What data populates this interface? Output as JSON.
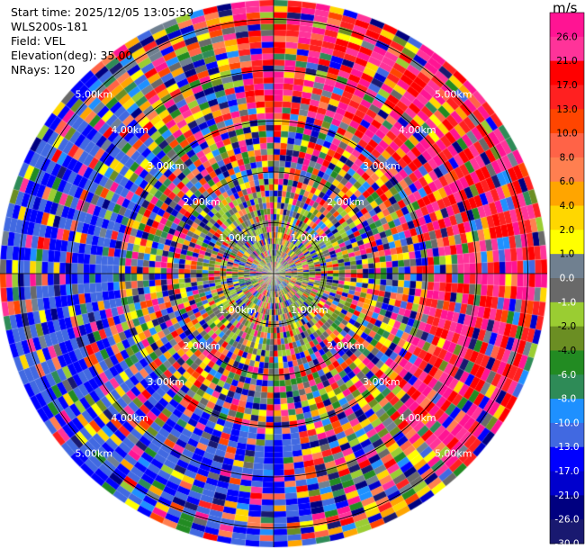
{
  "header": {
    "start_time": "Start time: 2025/12/05 13:05:59",
    "instrument": "WLS200s-181",
    "field": "Field: VEL",
    "elevation": "Elevation(deg): 35.00",
    "nrays": "NRays: 120"
  },
  "chart_data": {
    "type": "heatmap",
    "projection": "polar",
    "title": "",
    "field": "VEL",
    "unit": "m/s",
    "nrays": 120,
    "elevation_deg": 35.0,
    "range_ring_labels": [
      "1.00km",
      "2.00km",
      "3.00km",
      "4.00km",
      "5.00km"
    ],
    "range_rings_km": [
      1,
      2,
      3,
      4,
      5
    ],
    "max_range_km": 5.2,
    "colorbar": {
      "label": "m/s",
      "ticks": [
        "26.0",
        "21.0",
        "17.0",
        "13.0",
        "10.0",
        "8.0",
        "6.0",
        "4.0",
        "2.0",
        "1.0",
        "0.0",
        "-1.0",
        "-2.0",
        "-4.0",
        "-6.0",
        "-8.0",
        "-10.0",
        "-13.0",
        "-17.0",
        "-21.0",
        "-26.0",
        "-30.0"
      ],
      "colors": [
        "#ff1493",
        "#ff3399",
        "#ff0000",
        "#ff2020",
        "#ff4500",
        "#ff6347",
        "#ff7f50",
        "#ffa500",
        "#ffd700",
        "#ffff00",
        "#708090",
        "#696969",
        "#9acd32",
        "#6b8e23",
        "#228b22",
        "#2e8b57",
        "#1e90ff",
        "#4169e1",
        "#0000ff",
        "#0000cd",
        "#000080",
        "#191970"
      ]
    },
    "colors": {
      "ring_line": "#000000",
      "ring_label": "#ffffff"
    }
  }
}
